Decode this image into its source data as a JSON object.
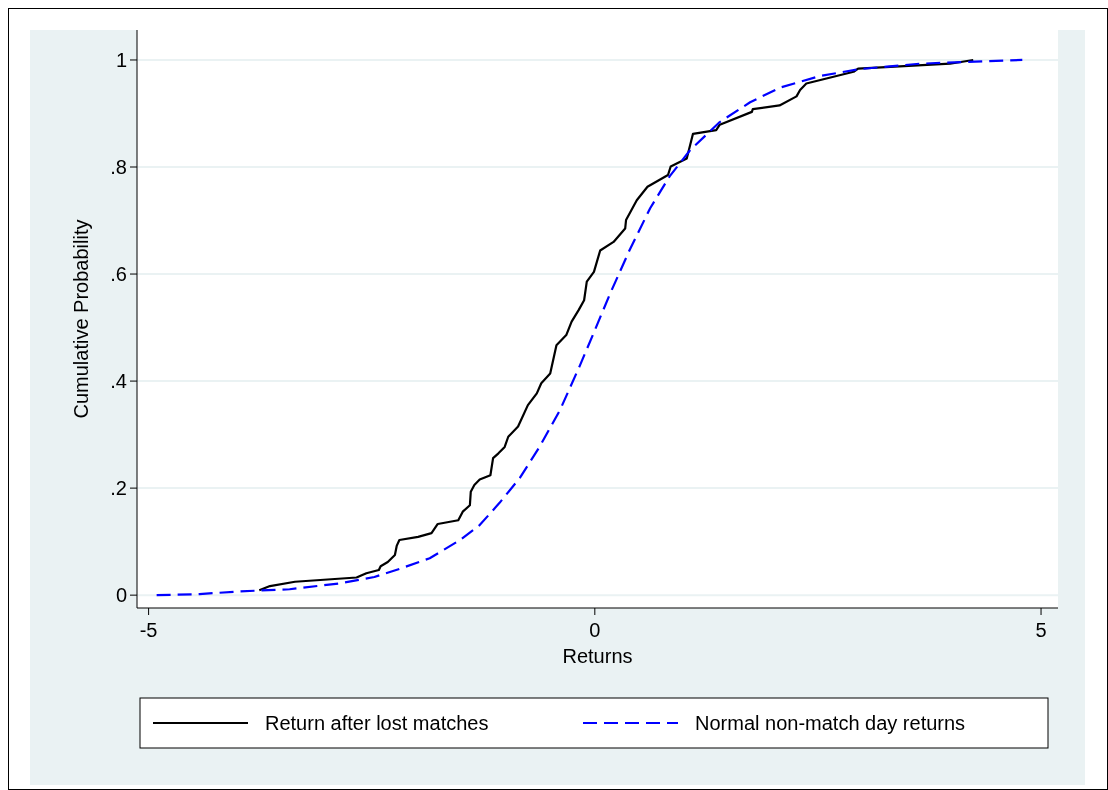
{
  "chart_data": {
    "type": "line",
    "xlabel": "Returns",
    "ylabel": "Cumulative Probability",
    "xlim": [
      -5.13,
      5.19
    ],
    "ylim": [
      -0.024,
      1.056
    ],
    "xticks": [
      -5,
      0,
      5
    ],
    "yticks": [
      0,
      {
        "value": 0.2,
        "label": ".2"
      },
      {
        "value": 0.4,
        "label": ".4"
      },
      {
        "value": 0.6,
        "label": ".6"
      },
      {
        "value": 0.8,
        "label": ".8"
      },
      1
    ],
    "grid": "y",
    "legend": "bottom",
    "series": [
      {
        "name": "Return after lost matches",
        "color": "#000000",
        "line_style": "solid",
        "x": [
          -3.76,
          -3.64,
          -3.36,
          -2.67,
          -2.56,
          -2.42,
          -2.4,
          -2.32,
          -2.24,
          -2.22,
          -2.19,
          -1.98,
          -1.83,
          -1.76,
          -1.53,
          -1.48,
          -1.4,
          -1.39,
          -1.35,
          -1.29,
          -1.17,
          -1.14,
          -1.08,
          -1.01,
          -0.97,
          -0.86,
          -0.75,
          -0.65,
          -0.6,
          -0.5,
          -0.43,
          -0.32,
          -0.26,
          -0.18,
          -0.12,
          -0.09,
          -0.01,
          0.06,
          0.21,
          0.34,
          0.35,
          0.47,
          0.59,
          0.82,
          0.85,
          1.03,
          1.1,
          1.36,
          1.4,
          1.76,
          1.77,
          2.07,
          2.26,
          2.3,
          2.37,
          2.9,
          2.95,
          3.98,
          4.24
        ],
        "values": [
          0.009,
          0.017,
          0.025,
          0.033,
          0.041,
          0.047,
          0.054,
          0.062,
          0.075,
          0.092,
          0.103,
          0.109,
          0.116,
          0.133,
          0.14,
          0.156,
          0.168,
          0.193,
          0.206,
          0.216,
          0.224,
          0.256,
          0.265,
          0.277,
          0.296,
          0.315,
          0.355,
          0.377,
          0.396,
          0.414,
          0.467,
          0.486,
          0.511,
          0.533,
          0.551,
          0.586,
          0.604,
          0.644,
          0.66,
          0.685,
          0.701,
          0.738,
          0.763,
          0.785,
          0.801,
          0.816,
          0.862,
          0.869,
          0.879,
          0.903,
          0.908,
          0.915,
          0.932,
          0.944,
          0.956,
          0.978,
          0.984,
          0.993,
          1.0
        ]
      },
      {
        "name": "Normal non-match day returns",
        "color": "#0000ff",
        "line_style": "dashed",
        "x": [
          -4.91,
          -4.43,
          -3.98,
          -3.42,
          -2.86,
          -2.47,
          -2.19,
          -1.85,
          -1.51,
          -1.29,
          -1.07,
          -0.84,
          -0.62,
          -0.39,
          -0.17,
          0,
          0.17,
          0.39,
          0.62,
          0.84,
          1.07,
          1.4,
          1.74,
          2.07,
          2.52,
          2.97,
          3.64,
          4.79
        ],
        "values": [
          0,
          0.002,
          0.007,
          0.011,
          0.022,
          0.034,
          0.049,
          0.069,
          0.103,
          0.131,
          0.172,
          0.219,
          0.277,
          0.346,
          0.428,
          0.495,
          0.563,
          0.645,
          0.723,
          0.783,
          0.832,
          0.884,
          0.921,
          0.948,
          0.97,
          0.983,
          0.993,
          1.0
        ]
      }
    ]
  }
}
